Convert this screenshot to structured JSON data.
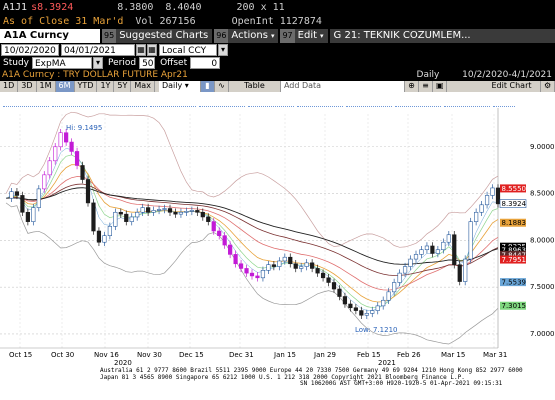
{
  "quote": {
    "ticker": "A1J1",
    "last_price": "s8.3924",
    "bid": "8.3800",
    "ask": "8.4040",
    "size": "200 x 11",
    "as_of_label": "As of Close",
    "as_of_date": "31 Mar'd",
    "vol_label": "Vol",
    "vol": "267156",
    "openint_label": "OpenInt",
    "openint": "1127874"
  },
  "toolbar": {
    "security": "A1A Curncy",
    "suggested_num": "95",
    "suggested_label": "Suggested Charts",
    "actions_num": "96",
    "actions_label": "Actions",
    "edit_num": "97",
    "edit_label": "Edit",
    "tab_title": "G 21: TEKNIK COZUMLEM..."
  },
  "range": {
    "start": "10/02/2020",
    "end": "04/01/2021",
    "currency": "Local CCY"
  },
  "study": {
    "label": "Study",
    "value": "ExpMA",
    "period_label": "Period",
    "period": "50",
    "offset_label": "Offset",
    "offset": "0"
  },
  "title": {
    "name": "A1A Curncy : TRY DOLLAR FUTURE Apr21",
    "freq": "Daily",
    "span": "10/2/2020-4/1/2021"
  },
  "range_buttons": [
    "1D",
    "3D",
    "1M",
    "6M",
    "YTD",
    "1Y",
    "5Y",
    "Max"
  ],
  "range_selected": "6M",
  "controls": {
    "freq": "Daily",
    "table": "Table",
    "add_data": "Add Data",
    "edit_chart": "Edit Chart"
  },
  "chart_data": {
    "type": "candlestick",
    "series_name": "TRY DOLLAR FUTURE Apr21",
    "y_ticks": [
      "9.0000",
      "8.5000",
      "8.0000",
      "7.5000",
      "7.0000"
    ],
    "x_ticks": [
      "Oct 15",
      "Oct 30",
      "Nov 16",
      "Nov 30",
      "Dec 15",
      "Dec 31",
      "Jan 15",
      "Jan 29",
      "Feb 15",
      "Feb 26",
      "Mar 15",
      "Mar 31"
    ],
    "year_labels": [
      "2020",
      "2021"
    ],
    "ylim": [
      6.85,
      9.35
    ],
    "high_label": "Hi: 9.1495",
    "low_label": "Low: 7.1210",
    "price_tags": [
      {
        "text": "8.5550",
        "color": "#e02020",
        "value": 8.555
      },
      {
        "text": "8.3924",
        "color": "#ffffff",
        "value": 8.3924
      },
      {
        "text": "8.1883",
        "color": "#e8a23a",
        "value": 8.1883
      },
      {
        "text": "7.9325",
        "color": "#000000",
        "value": 7.9325
      },
      {
        "text": "7.8963",
        "color": "#000000",
        "value": 7.8963
      },
      {
        "text": "7.8447",
        "color": "#5b2a2a",
        "value": 7.8447
      },
      {
        "text": "7.7951",
        "color": "#e02020",
        "value": 7.7951
      },
      {
        "text": "7.5539",
        "color": "#6aa6d8",
        "value": 7.5539
      },
      {
        "text": "7.3015",
        "color": "#7fd67f",
        "value": 7.3015
      }
    ],
    "closes": [
      8.45,
      8.52,
      8.48,
      8.3,
      8.2,
      8.35,
      8.55,
      8.7,
      8.85,
      9.0,
      9.15,
      9.05,
      8.95,
      8.8,
      8.65,
      8.4,
      8.1,
      7.98,
      8.05,
      8.15,
      8.3,
      8.28,
      8.2,
      8.25,
      8.3,
      8.35,
      8.3,
      8.32,
      8.33,
      8.34,
      8.3,
      8.28,
      8.3,
      8.31,
      8.32,
      8.3,
      8.25,
      8.2,
      8.1,
      8.05,
      7.95,
      7.85,
      7.75,
      7.7,
      7.65,
      7.62,
      7.6,
      7.68,
      7.74,
      7.72,
      7.78,
      7.82,
      7.75,
      7.7,
      7.72,
      7.76,
      7.7,
      7.65,
      7.6,
      7.55,
      7.48,
      7.4,
      7.32,
      7.28,
      7.25,
      7.2,
      7.22,
      7.25,
      7.3,
      7.36,
      7.45,
      7.55,
      7.65,
      7.72,
      7.8,
      7.85,
      7.9,
      7.94,
      7.86,
      7.9,
      7.98,
      8.06,
      7.74,
      7.56,
      7.8,
      8.2,
      8.3,
      8.38,
      8.48,
      8.56,
      8.39
    ]
  },
  "footer": {
    "line1": "Australia 61 2 9777 8600 Brazil 5511 2395 9000 Europe 44 20 7330 7500 Germany 49 69 9204 1210 Hong Kong 852 2977 6000",
    "line2": "Japan 81 3 4565 8900        Singapore 65 6212 1000        U.S. 1 212 318 2000        Copyright 2021 Bloomberg Finance L.P.",
    "line3": "SN 106200G AST  GMT+3:00 H920-1920-5 01-Apr-2021 09:15:31"
  }
}
